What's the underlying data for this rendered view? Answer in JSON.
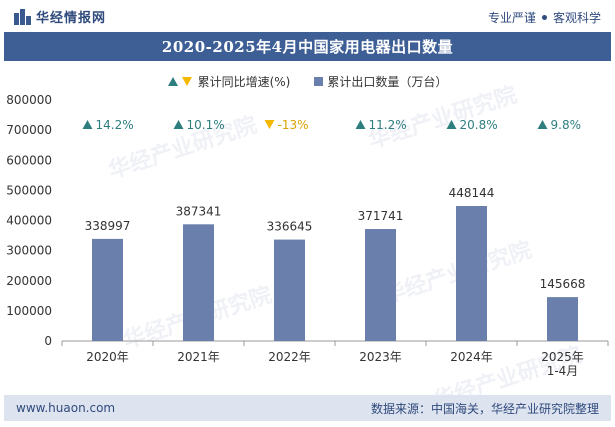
{
  "header": {
    "brand": "华经情报网",
    "tagline_a": "专业严谨",
    "tagline_b": "客观科学"
  },
  "title": "2020-2025年4月中国家用电器出口数量",
  "legend": {
    "growth_label": "累计同比增速(%)",
    "qty_label": "累计出口数量（万台）"
  },
  "watermark": "华经产业研究院",
  "footer": {
    "url": "www.huaon.com",
    "source": "数据来源：中国海关，华经产业研究院整理"
  },
  "colors": {
    "bar": "#6a7fab",
    "title_bg": "#3e5f96",
    "up": "#2e7d7f",
    "down": "#f5b800"
  },
  "chart_data": {
    "type": "bar",
    "categories": [
      "2020年",
      "2021年",
      "2022年",
      "2023年",
      "2024年",
      "2025年\n1-4月"
    ],
    "series": [
      {
        "name": "累计出口数量（万台）",
        "values": [
          338997,
          387341,
          336645,
          371741,
          448144,
          145668
        ]
      },
      {
        "name": "累计同比增速(%)",
        "values": [
          14.2,
          10.1,
          -13,
          11.2,
          20.8,
          9.8
        ]
      }
    ],
    "growth_labels": [
      "14.2%",
      "10.1%",
      "-13%",
      "11.2%",
      "20.8%",
      "9.8%"
    ],
    "ylim": [
      0,
      800000
    ],
    "yticks": [
      0,
      100000,
      200000,
      300000,
      400000,
      500000,
      600000,
      700000,
      800000
    ],
    "legend_position": "top-center",
    "grid": false
  }
}
